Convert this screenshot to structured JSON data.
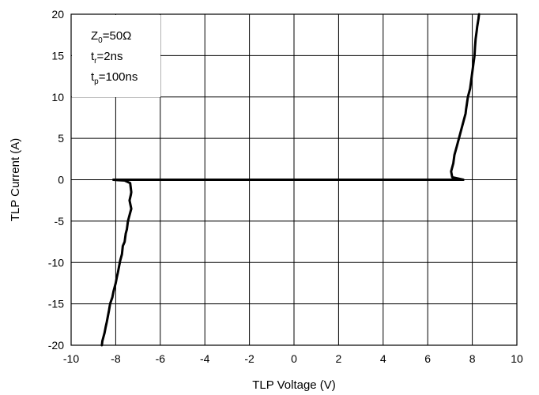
{
  "chart_data": {
    "type": "line",
    "title": "",
    "xlabel": "TLP Voltage (V)",
    "ylabel": "TLP Current (A)",
    "xlim": [
      -10,
      10
    ],
    "ylim": [
      -20,
      20
    ],
    "x_ticks": [
      -10,
      -8,
      -6,
      -4,
      -2,
      0,
      2,
      4,
      6,
      8,
      10
    ],
    "y_ticks": [
      20,
      15,
      10,
      5,
      0,
      -5,
      -10,
      -15,
      -20
    ],
    "grid": true,
    "annotation": {
      "lines": [
        {
          "main": "Z",
          "sub": "0",
          "rest": "=50Ω"
        },
        {
          "main": "t",
          "sub": "r",
          "rest": "=2ns"
        },
        {
          "main": "t",
          "sub": "p",
          "rest": "=100ns"
        }
      ],
      "placement": "top-left"
    },
    "series": [
      {
        "x": [
          -8.1,
          -7.9,
          -7.6,
          -7.35,
          -7.3,
          -7.32,
          -7.38,
          -7.3,
          -7.4,
          -7.45,
          -7.5,
          -7.55,
          -7.6,
          -7.68,
          -7.72,
          -7.8,
          -7.85,
          -7.9,
          -7.95,
          -8.0,
          -8.1,
          -8.15,
          -8.25,
          -8.3,
          -8.35,
          -8.4,
          -8.45,
          -8.5,
          -8.55,
          -8.6,
          -8.62
        ],
        "y": [
          0,
          -0.05,
          -0.1,
          -0.4,
          -1.5,
          -1.8,
          -2.5,
          -3.5,
          -4.5,
          -5.0,
          -6.0,
          -6.5,
          -7.5,
          -8.0,
          -9.0,
          -9.8,
          -10.5,
          -11.2,
          -11.8,
          -12.5,
          -13.5,
          -14.2,
          -15.0,
          -15.8,
          -16.5,
          -17.2,
          -17.8,
          -18.5,
          -19.0,
          -19.5,
          -20.0
        ]
      },
      {
        "x": [
          -8.1,
          7.1,
          7.6,
          7.1,
          7.05,
          7.15,
          7.2,
          7.3,
          7.35,
          7.4,
          7.45,
          7.5,
          7.55,
          7.6,
          7.7,
          7.72,
          7.75,
          7.8,
          7.9,
          7.95,
          8.0,
          8.05,
          8.1,
          8.12,
          8.15,
          8.2,
          8.22,
          8.28,
          8.3
        ],
        "y": [
          0,
          0,
          0,
          0.3,
          1.0,
          2.0,
          3.0,
          4.0,
          4.5,
          5.0,
          5.5,
          6.0,
          6.5,
          7.0,
          8.0,
          8.5,
          9.0,
          10.0,
          11.0,
          12.0,
          13.0,
          14.0,
          15.0,
          16.0,
          17.0,
          18.0,
          18.5,
          19.5,
          20.0
        ]
      }
    ]
  }
}
